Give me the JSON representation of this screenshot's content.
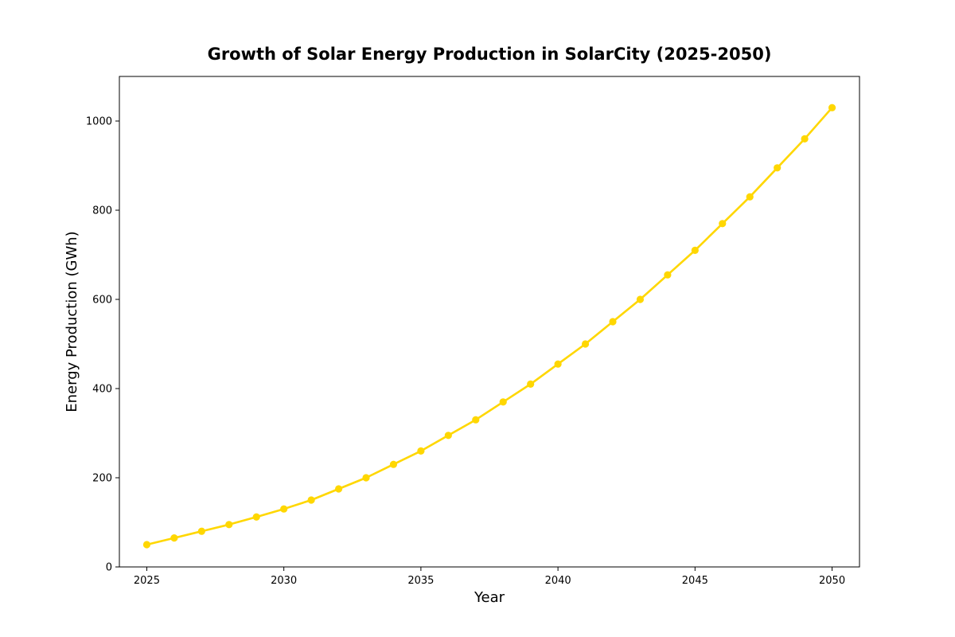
{
  "chart_data": {
    "type": "line",
    "title": "Growth of Solar Energy Production in SolarCity (2025-2050)",
    "xlabel": "Year",
    "ylabel": "Energy Production (GWh)",
    "xlim": [
      2024,
      2051
    ],
    "ylim": [
      0,
      1100
    ],
    "x_ticks": [
      2025,
      2030,
      2035,
      2040,
      2045,
      2050
    ],
    "y_ticks": [
      0,
      200,
      400,
      600,
      800,
      1000
    ],
    "grid": false,
    "legend": "none",
    "marker": "circle",
    "colors": {
      "line": "#FFD700",
      "axes": "#000000",
      "background": "#ffffff"
    },
    "series": [
      {
        "x": [
          2025,
          2026,
          2027,
          2028,
          2029,
          2030,
          2031,
          2032,
          2033,
          2034,
          2035,
          2036,
          2037,
          2038,
          2039,
          2040,
          2041,
          2042,
          2043,
          2044,
          2045,
          2046,
          2047,
          2048,
          2049,
          2050
        ],
        "values": [
          50,
          65,
          80,
          95,
          112,
          130,
          150,
          175,
          200,
          230,
          260,
          295,
          330,
          370,
          410,
          455,
          500,
          550,
          600,
          655,
          710,
          770,
          830,
          895,
          960,
          1030
        ]
      }
    ]
  }
}
